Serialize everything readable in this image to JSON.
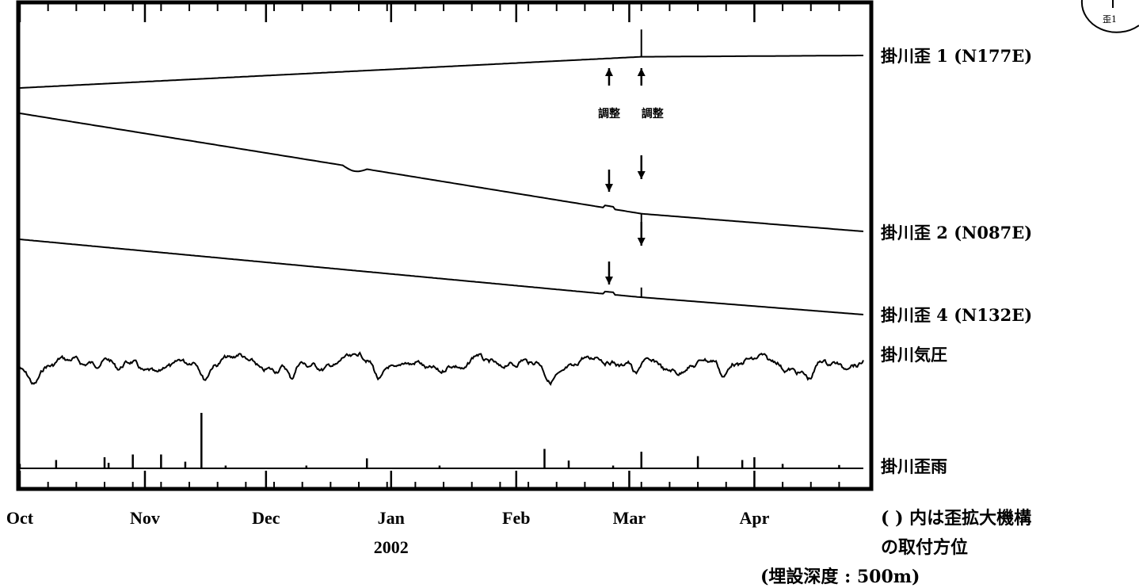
{
  "chart_data": {
    "type": "line",
    "xaxis": {
      "months": [
        "Oct",
        "Nov",
        "Dec",
        "Jan",
        "Feb",
        "Mar",
        "Apr"
      ],
      "year_label": "2002",
      "start": "2001-10-01",
      "end": "2002-04-28"
    },
    "series": [
      {
        "name": "掛川歪 1 (N177E)",
        "trend": [
          [
            "2001-10-01",
            0.0
          ],
          [
            "2002-03-04",
            0.96
          ],
          [
            "2002-04-28",
            1.0
          ]
        ],
        "spikes": [
          {
            "date": "2002-03-04",
            "value": 1.8
          }
        ]
      },
      {
        "name": "掛川歪 2 (N087E)",
        "trend": [
          [
            "2001-10-01",
            0.0
          ],
          [
            "2001-12-20",
            0.44
          ],
          [
            "2002-03-04",
            0.85
          ],
          [
            "2002-04-28",
            1.0
          ]
        ],
        "spikes": [
          {
            "date": "2002-03-04",
            "value": 0.95
          }
        ]
      },
      {
        "name": "掛川歪 4 (N132E)",
        "trend": [
          [
            "2001-10-01",
            0.0
          ],
          [
            "2002-03-04",
            0.77
          ],
          [
            "2002-04-28",
            1.0
          ]
        ],
        "spikes": [
          {
            "date": "2002-03-04",
            "value": 0.64
          }
        ]
      },
      {
        "name": "掛川気圧",
        "fluctuation": "daily pressure variation"
      },
      {
        "name": "掛川歪雨",
        "events": [
          {
            "date": "2001-10-01",
            "value": 0.08
          },
          {
            "date": "2001-10-10",
            "value": 0.15
          },
          {
            "date": "2001-10-22",
            "value": 0.2
          },
          {
            "date": "2001-10-23",
            "value": 0.1
          },
          {
            "date": "2001-10-29",
            "value": 0.25
          },
          {
            "date": "2001-11-05",
            "value": 0.25
          },
          {
            "date": "2001-11-11",
            "value": 0.12
          },
          {
            "date": "2001-11-15",
            "value": 1.0
          },
          {
            "date": "2001-11-21",
            "value": 0.05
          },
          {
            "date": "2001-12-11",
            "value": 0.05
          },
          {
            "date": "2001-12-26",
            "value": 0.18
          },
          {
            "date": "2002-01-13",
            "value": 0.05
          },
          {
            "date": "2002-02-08",
            "value": 0.35
          },
          {
            "date": "2002-02-14",
            "value": 0.14
          },
          {
            "date": "2002-02-25",
            "value": 0.05
          },
          {
            "date": "2002-03-04",
            "value": 0.3
          },
          {
            "date": "2002-03-18",
            "value": 0.22
          },
          {
            "date": "2002-03-29",
            "value": 0.15
          },
          {
            "date": "2002-04-01",
            "value": 0.2
          },
          {
            "date": "2002-04-08",
            "value": 0.08
          },
          {
            "date": "2002-04-22",
            "value": 0.06
          }
        ]
      }
    ],
    "annotations": [
      {
        "text": "調整",
        "date": "2002-02-24"
      },
      {
        "text": "調整",
        "date": "2002-03-04"
      }
    ],
    "notes": [
      "( ) 内は歪拡大機構",
      "の取付方位",
      "(埋設深度 : 500m)"
    ],
    "inset_label": "歪1"
  }
}
